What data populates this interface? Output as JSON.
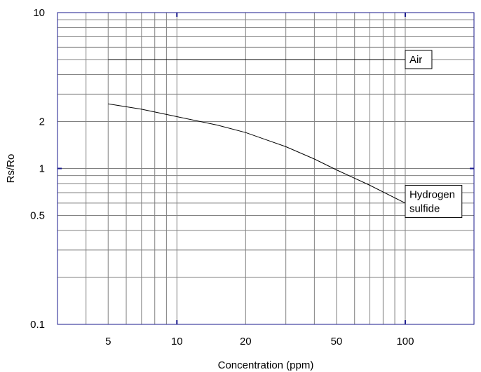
{
  "chart_data": {
    "type": "line",
    "title": "",
    "xlabel": "Concentration (ppm)",
    "ylabel": "Rs/Ro",
    "x_scale": "log",
    "y_scale": "log",
    "xlim": [
      3,
      200
    ],
    "ylim": [
      0.1,
      10
    ],
    "grid": true,
    "x_ticks": [
      5,
      10,
      20,
      50,
      100
    ],
    "x_tick_labels": [
      "5",
      "10",
      "20",
      "50",
      "100"
    ],
    "y_ticks": [
      0.1,
      0.5,
      1,
      2,
      10
    ],
    "y_tick_labels": [
      "0.1",
      "0.5",
      "1",
      "2",
      "10"
    ],
    "series": [
      {
        "name": "Air",
        "x": [
          5,
          10,
          20,
          50,
          100
        ],
        "y": [
          5,
          5,
          5,
          5,
          5
        ]
      },
      {
        "name": "Hydrogen sulfide",
        "x": [
          5,
          7,
          10,
          15,
          20,
          30,
          40,
          50,
          70,
          100
        ],
        "y": [
          2.6,
          2.4,
          2.15,
          1.9,
          1.7,
          1.38,
          1.15,
          0.98,
          0.78,
          0.6
        ]
      }
    ],
    "annotations": [
      {
        "series": "Air",
        "lines": [
          "Air"
        ]
      },
      {
        "series": "Hydrogen sulfide",
        "lines": [
          "Hydrogen",
          "sulfide"
        ]
      }
    ],
    "colors": {
      "frame": "#1a1a8c",
      "grid": "#808080",
      "line": "#000000"
    }
  }
}
